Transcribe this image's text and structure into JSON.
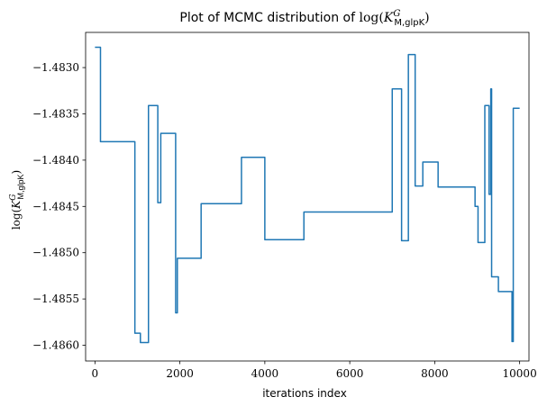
{
  "chart_data": {
    "type": "line",
    "step": true,
    "title": "Plot of MCMC distribution of log(K^G_{M,glpK})",
    "title_parts": {
      "text": "Plot of MCMC distribution of ",
      "func": "log(",
      "base": "K",
      "sup": "G",
      "sub": "M,glpK",
      "close": ")"
    },
    "xlabel": "iterations index",
    "ylabel": "log(K^G_{M,glpK})",
    "ylabel_parts": {
      "func": "log(",
      "base": "K",
      "sup": "G",
      "sub": "M,glpK",
      "close": ")"
    },
    "xlim": [
      -220,
      10220
    ],
    "ylim": [
      -1.48617,
      -1.48262
    ],
    "xticks": [
      0,
      2000,
      4000,
      6000,
      8000,
      10000
    ],
    "xtick_labels": [
      "0",
      "2000",
      "4000",
      "6000",
      "8000",
      "10000"
    ],
    "yticks": [
      -1.486,
      -1.4855,
      -1.485,
      -1.4845,
      -1.484,
      -1.4835,
      -1.483
    ],
    "ytick_labels": [
      "−1.4860",
      "−1.4855",
      "−1.4850",
      "−1.4845",
      "−1.4840",
      "−1.4835",
      "−1.4830"
    ],
    "grid": false,
    "series": [
      {
        "color": "#1f77b4",
        "x": [
          0,
          130,
          940,
          1070,
          1260,
          1480,
          1550,
          1600,
          1900,
          1940,
          1990,
          2500,
          3450,
          4000,
          4920,
          7000,
          7220,
          7380,
          7540,
          7720,
          8080,
          8950,
          9020,
          9180,
          9280,
          9320,
          9340,
          9360,
          9500,
          9820,
          9850,
          9870,
          10000
        ],
        "y": [
          -1.48278,
          -1.4838,
          -1.48587,
          -1.48597,
          -1.48341,
          -1.48446,
          -1.48371,
          -1.48371,
          -1.48565,
          -1.48506,
          -1.48506,
          -1.48447,
          -1.48397,
          -1.48486,
          -1.48456,
          -1.48323,
          -1.48487,
          -1.48286,
          -1.48428,
          -1.48402,
          -1.48429,
          -1.4845,
          -1.48489,
          -1.48341,
          -1.48437,
          -1.48323,
          -1.48526,
          -1.48526,
          -1.48542,
          -1.48596,
          -1.48344,
          -1.48344,
          -1.48344
        ]
      }
    ]
  }
}
